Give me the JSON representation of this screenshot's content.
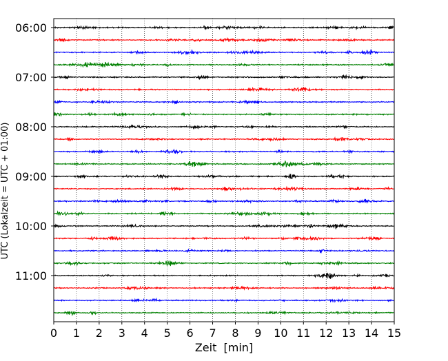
{
  "chart_data": {
    "type": "line",
    "title": "",
    "xlabel": "Zeit  [min]",
    "ylabel": "UTC (Lokalzeit = UTC + 01:00)",
    "xlim": [
      0,
      15
    ],
    "x_ticks": [
      "0",
      "1",
      "2",
      "3",
      "4",
      "5",
      "6",
      "7",
      "8",
      "9",
      "10",
      "11",
      "12",
      "13",
      "14",
      "15"
    ],
    "y_tick_labels": [
      "06:00",
      "07:00",
      "08:00",
      "09:00",
      "10:00",
      "11:00"
    ],
    "grid": "vertical dotted",
    "row_start": "06:00",
    "row_minutes": 15,
    "colors": [
      "#000000",
      "#ff0000",
      "#0000ff",
      "#008000"
    ],
    "traces": [
      {
        "start": "06:00",
        "color": "#000000"
      },
      {
        "start": "06:15",
        "color": "#ff0000"
      },
      {
        "start": "06:30",
        "color": "#0000ff"
      },
      {
        "start": "06:45",
        "color": "#008000"
      },
      {
        "start": "07:00",
        "color": "#000000"
      },
      {
        "start": "07:15",
        "color": "#ff0000"
      },
      {
        "start": "07:30",
        "color": "#0000ff"
      },
      {
        "start": "07:45",
        "color": "#008000"
      },
      {
        "start": "08:00",
        "color": "#000000"
      },
      {
        "start": "08:15",
        "color": "#ff0000"
      },
      {
        "start": "08:30",
        "color": "#0000ff"
      },
      {
        "start": "08:45",
        "color": "#008000"
      },
      {
        "start": "09:00",
        "color": "#000000"
      },
      {
        "start": "09:15",
        "color": "#ff0000"
      },
      {
        "start": "09:30",
        "color": "#0000ff"
      },
      {
        "start": "09:45",
        "color": "#008000"
      },
      {
        "start": "10:00",
        "color": "#000000"
      },
      {
        "start": "10:15",
        "color": "#ff0000"
      },
      {
        "start": "10:30",
        "color": "#0000ff"
      },
      {
        "start": "10:45",
        "color": "#008000"
      },
      {
        "start": "11:00",
        "color": "#000000"
      },
      {
        "start": "11:15",
        "color": "#ff0000"
      },
      {
        "start": "11:30",
        "color": "#0000ff"
      },
      {
        "start": "11:45",
        "color": "#008000"
      }
    ]
  }
}
